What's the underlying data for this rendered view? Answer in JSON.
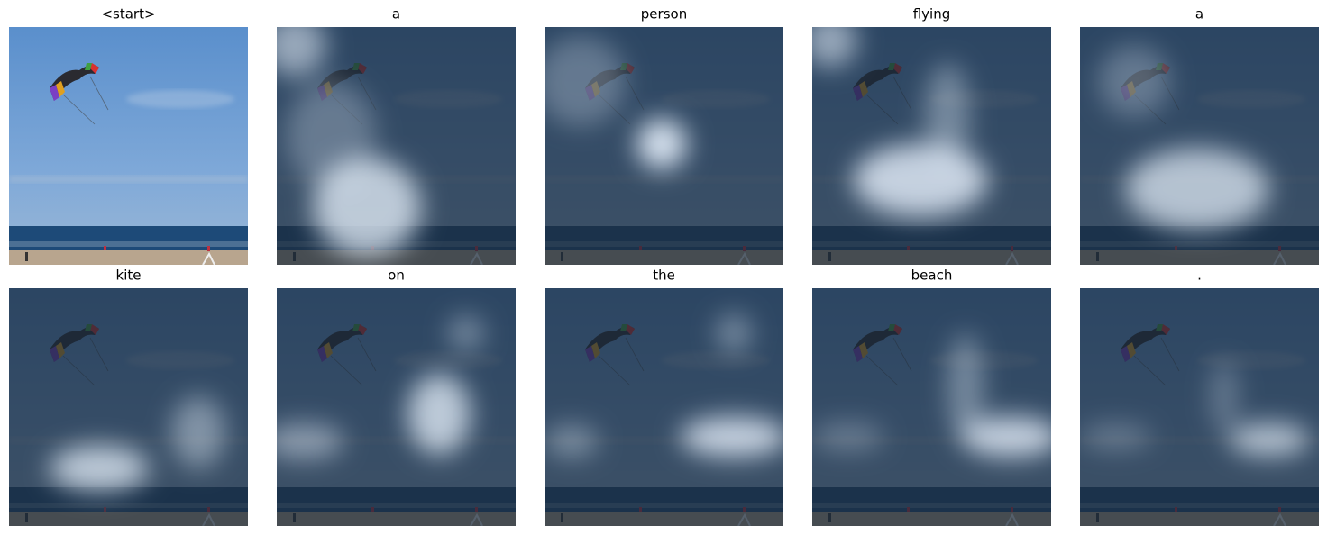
{
  "panels": [
    {
      "title": "<start>"
    },
    {
      "title": "a"
    },
    {
      "title": "person"
    },
    {
      "title": "flying"
    },
    {
      "title": "a"
    },
    {
      "title": "kite"
    },
    {
      "title": "on"
    },
    {
      "title": "the"
    },
    {
      "title": "beach"
    },
    {
      "title": "."
    }
  ]
}
